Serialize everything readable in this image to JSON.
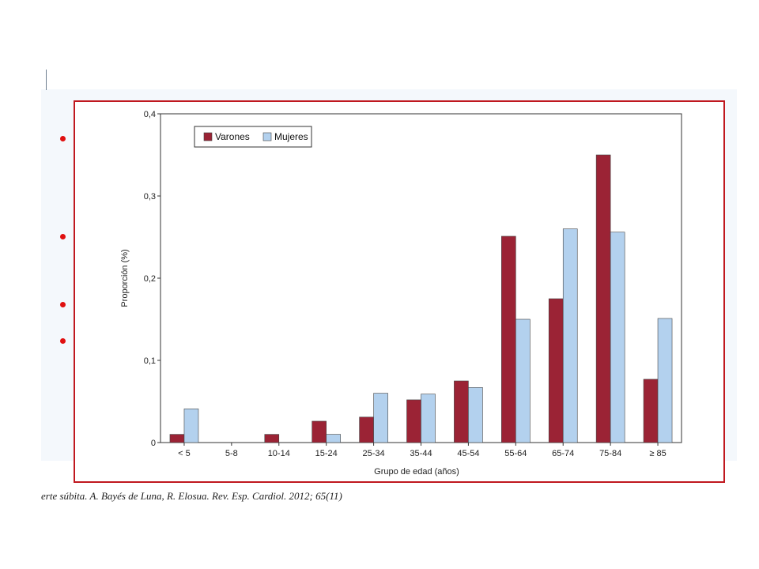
{
  "chart_data": {
    "type": "bar",
    "ylabel": "Proporción (%)",
    "xlabel": "Grupo de edad (años)",
    "ylim": [
      0,
      0.4
    ],
    "yticks": [
      {
        "value": 0,
        "label": "0"
      },
      {
        "value": 0.1,
        "label": "0,1"
      },
      {
        "value": 0.2,
        "label": "0,2"
      },
      {
        "value": 0.3,
        "label": "0,3"
      },
      {
        "value": 0.4,
        "label": "0,4"
      }
    ],
    "categories": [
      "< 5",
      "5-8",
      "10-14",
      "15-24",
      "25-34",
      "35-44",
      "45-54",
      "55-64",
      "65-74",
      "75-84",
      "≥ 85"
    ],
    "series": [
      {
        "name": "Varones",
        "color": "#9b2335",
        "values": [
          0.01,
          0,
          0.01,
          0.026,
          0.031,
          0.052,
          0.075,
          0.251,
          0.175,
          0.35,
          0.077
        ]
      },
      {
        "name": "Mujeres",
        "color": "#b3d1ee",
        "values": [
          0.041,
          0,
          0,
          0.01,
          0.06,
          0.059,
          0.067,
          0.15,
          0.26,
          0.256,
          0.151
        ]
      }
    ],
    "legend_position": "top-left",
    "grid": false
  },
  "citation": "erte súbita. A. Bayés de Luna, R. Elosua. Rev. Esp. Cardiol. 2012; 65(11)"
}
